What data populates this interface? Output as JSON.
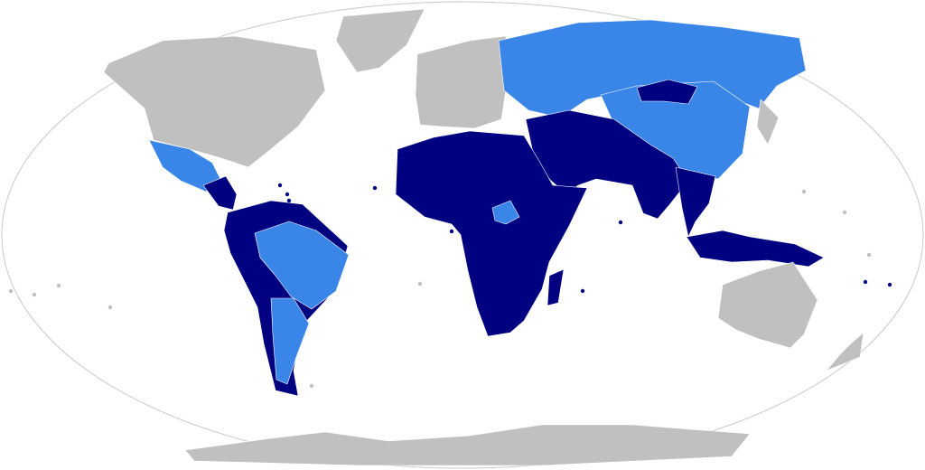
{
  "map": {
    "projection": "Robinson",
    "colors": {
      "category_a": "#000080",
      "category_b": "#3a86e8",
      "other": "#c0c0c0",
      "ocean": "#ffffff",
      "outline": "#c8c8c8"
    },
    "regions": [
      {
        "id": "north-america",
        "category": "other"
      },
      {
        "id": "greenland",
        "category": "other"
      },
      {
        "id": "mexico",
        "category": "category_b"
      },
      {
        "id": "central-america",
        "category": "category_a"
      },
      {
        "id": "south-america",
        "category": "category_a"
      },
      {
        "id": "brazil",
        "category": "category_b"
      },
      {
        "id": "argentina",
        "category": "category_b"
      },
      {
        "id": "europe",
        "category": "other"
      },
      {
        "id": "russia",
        "category": "category_b"
      },
      {
        "id": "china",
        "category": "category_b"
      },
      {
        "id": "mongolia",
        "category": "category_a"
      },
      {
        "id": "middle-east-south-asia",
        "category": "category_a"
      },
      {
        "id": "africa",
        "category": "category_a"
      },
      {
        "id": "south-sudan",
        "category": "category_b"
      },
      {
        "id": "madagascar",
        "category": "category_a"
      },
      {
        "id": "southeast-asia",
        "category": "category_a"
      },
      {
        "id": "indonesia",
        "category": "category_a"
      },
      {
        "id": "japan",
        "category": "other"
      },
      {
        "id": "australia",
        "category": "other"
      },
      {
        "id": "new-zealand",
        "category": "other"
      },
      {
        "id": "antarctica",
        "category": "other"
      }
    ]
  }
}
